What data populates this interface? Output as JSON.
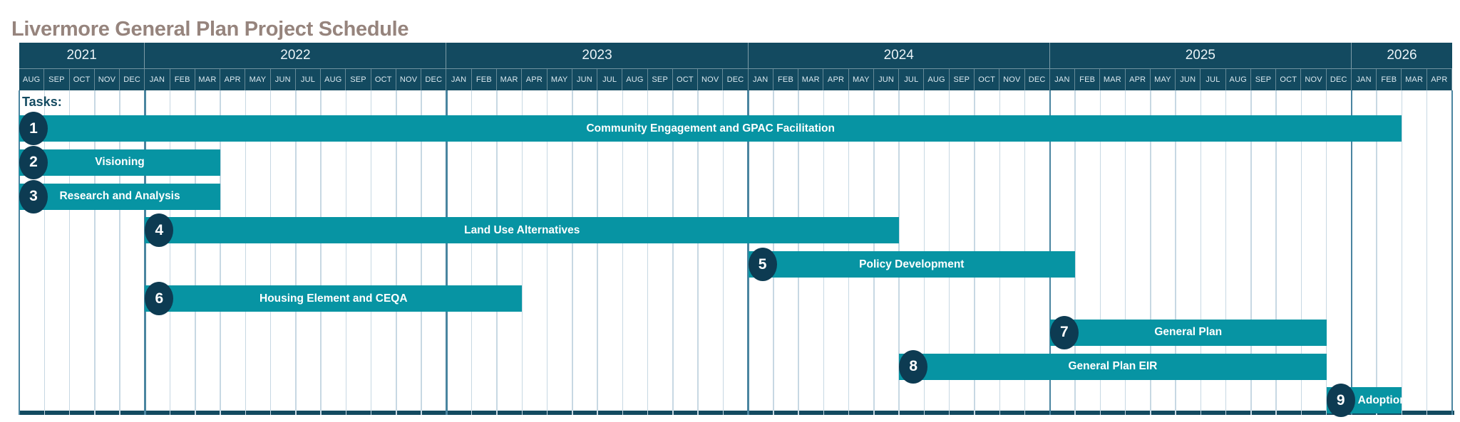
{
  "labels": {
    "tasks": "Tasks:"
  },
  "colors": {
    "title_text": "#96847D",
    "header_navy": "#134A60",
    "bar_teal": "#0794A3",
    "badge_navy": "#0D3B52",
    "grid_month": "#C7D8E3",
    "grid_year": "#4A85A0",
    "baseline_navy": "#134A60"
  },
  "chart_data": {
    "type": "gantt",
    "title": "Livermore General Plan Project Schedule",
    "x_axis_unit": "month",
    "timeline": {
      "start": "AUG 2021",
      "end": "APR 2026",
      "total_months": 57,
      "years": [
        {
          "label": "2021",
          "months": [
            "AUG",
            "SEP",
            "OCT",
            "NOV",
            "DEC"
          ]
        },
        {
          "label": "2022",
          "months": [
            "JAN",
            "FEB",
            "MAR",
            "APR",
            "MAY",
            "JUN",
            "JUL",
            "AUG",
            "SEP",
            "OCT",
            "NOV",
            "DEC"
          ]
        },
        {
          "label": "2023",
          "months": [
            "JAN",
            "FEB",
            "MAR",
            "APR",
            "MAY",
            "JUN",
            "JUL",
            "AUG",
            "SEP",
            "OCT",
            "NOV",
            "DEC"
          ]
        },
        {
          "label": "2024",
          "months": [
            "JAN",
            "FEB",
            "MAR",
            "APR",
            "MAY",
            "JUN",
            "JUL",
            "AUG",
            "SEP",
            "OCT",
            "NOV",
            "DEC"
          ]
        },
        {
          "label": "2025",
          "months": [
            "JAN",
            "FEB",
            "MAR",
            "APR",
            "MAY",
            "JUN",
            "JUL",
            "AUG",
            "SEP",
            "OCT",
            "NOV",
            "DEC"
          ]
        },
        {
          "label": "2026",
          "months": [
            "JAN",
            "FEB",
            "MAR",
            "APR"
          ]
        }
      ]
    },
    "tasks": [
      {
        "number": "1",
        "label": "Community Engagement and GPAC Facilitation",
        "start": "AUG 2021",
        "end": "FEB 2026",
        "start_index": 0,
        "end_index": 55,
        "duration_months": 55
      },
      {
        "number": "2",
        "label": "Visioning",
        "start": "AUG 2021",
        "end": "MAR 2022",
        "start_index": 0,
        "end_index": 8,
        "duration_months": 8
      },
      {
        "number": "3",
        "label": "Research and Analysis",
        "start": "AUG 2021",
        "end": "MAR 2022",
        "start_index": 0,
        "end_index": 8,
        "duration_months": 8
      },
      {
        "number": "4",
        "label": "Land Use Alternatives",
        "start": "JAN 2022",
        "end": "JUN 2024",
        "start_index": 5,
        "end_index": 35,
        "duration_months": 30
      },
      {
        "number": "5",
        "label": "Policy Development",
        "start": "JAN 2024",
        "end": "JAN 2025",
        "start_index": 29,
        "end_index": 42,
        "duration_months": 13
      },
      {
        "number": "6",
        "label": "Housing Element and CEQA",
        "start": "JAN 2022",
        "end": "MAR 2023",
        "start_index": 5,
        "end_index": 20,
        "duration_months": 15
      },
      {
        "number": "7",
        "label": "General Plan",
        "start": "JAN 2025",
        "end": "NOV 2025",
        "start_index": 41,
        "end_index": 52,
        "duration_months": 11
      },
      {
        "number": "8",
        "label": "General Plan EIR",
        "start": "JUL 2024",
        "end": "NOV 2025",
        "start_index": 35,
        "end_index": 52,
        "duration_months": 17
      },
      {
        "number": "9",
        "label": "Adoption",
        "start": "DEC 2025",
        "end": "FEB 2026",
        "start_index": 52,
        "end_index": 55,
        "duration_months": 3
      }
    ]
  }
}
